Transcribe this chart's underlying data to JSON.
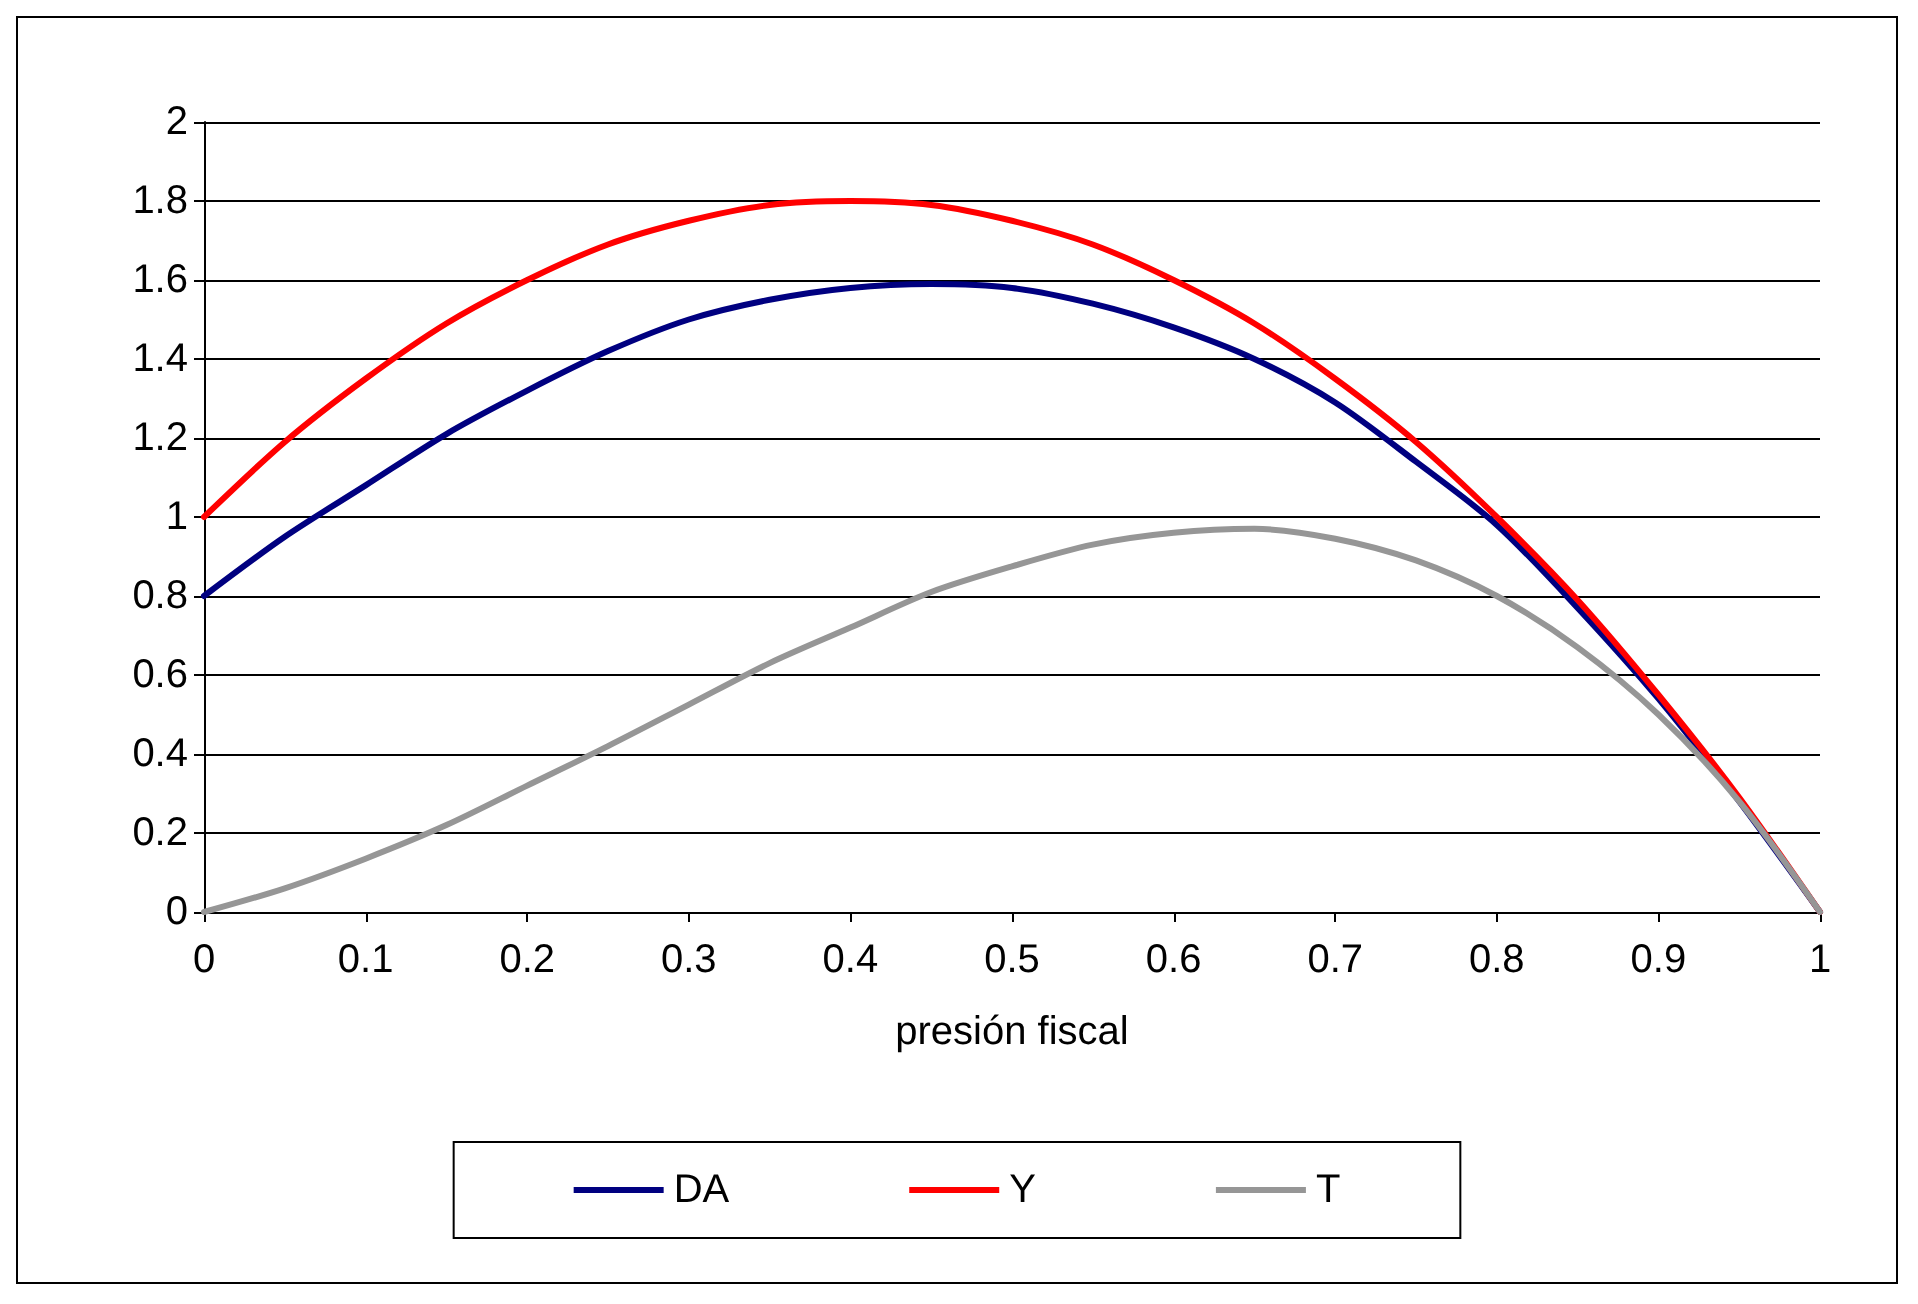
{
  "chart_data": {
    "type": "line",
    "xlabel": "presión fiscal",
    "x": [
      0,
      0.05,
      0.1,
      0.15,
      0.2,
      0.25,
      0.3,
      0.35,
      0.4,
      0.45,
      0.5,
      0.55,
      0.6,
      0.65,
      0.7,
      0.75,
      0.8,
      0.85,
      0.9,
      0.95,
      1
    ],
    "series": [
      {
        "name": "DA",
        "color": "#000080",
        "values": [
          0.8,
          0.95,
          1.08,
          1.21,
          1.32,
          1.42,
          1.5,
          1.55,
          1.58,
          1.59,
          1.58,
          1.54,
          1.48,
          1.4,
          1.29,
          1.14,
          0.98,
          0.77,
          0.54,
          0.28,
          0
        ]
      },
      {
        "name": "Y",
        "color": "#ff0000",
        "values": [
          1,
          1.19,
          1.35,
          1.49,
          1.6,
          1.69,
          1.75,
          1.79,
          1.8,
          1.79,
          1.75,
          1.69,
          1.6,
          1.49,
          1.35,
          1.19,
          1,
          0.79,
          0.55,
          0.29,
          0
        ]
      },
      {
        "name": "T",
        "color": "#969696",
        "values": [
          0,
          0.06,
          0.135,
          0.22,
          0.32,
          0.42,
          0.525,
          0.63,
          0.72,
          0.81,
          0.875,
          0.93,
          0.96,
          0.97,
          0.945,
          0.89,
          0.8,
          0.67,
          0.5,
          0.28,
          0
        ]
      }
    ],
    "xlim": [
      0,
      1
    ],
    "xticks": [
      0,
      0.1,
      0.2,
      0.3,
      0.4,
      0.5,
      0.6,
      0.7,
      0.8,
      0.9,
      1
    ],
    "ylim": [
      0,
      2
    ],
    "yticks": [
      0,
      0.2,
      0.4,
      0.6,
      0.8,
      1,
      1.2,
      1.4,
      1.6,
      1.8,
      2
    ],
    "grid": "y",
    "legend": "bottom",
    "marker": "none",
    "line_style": "solid"
  }
}
